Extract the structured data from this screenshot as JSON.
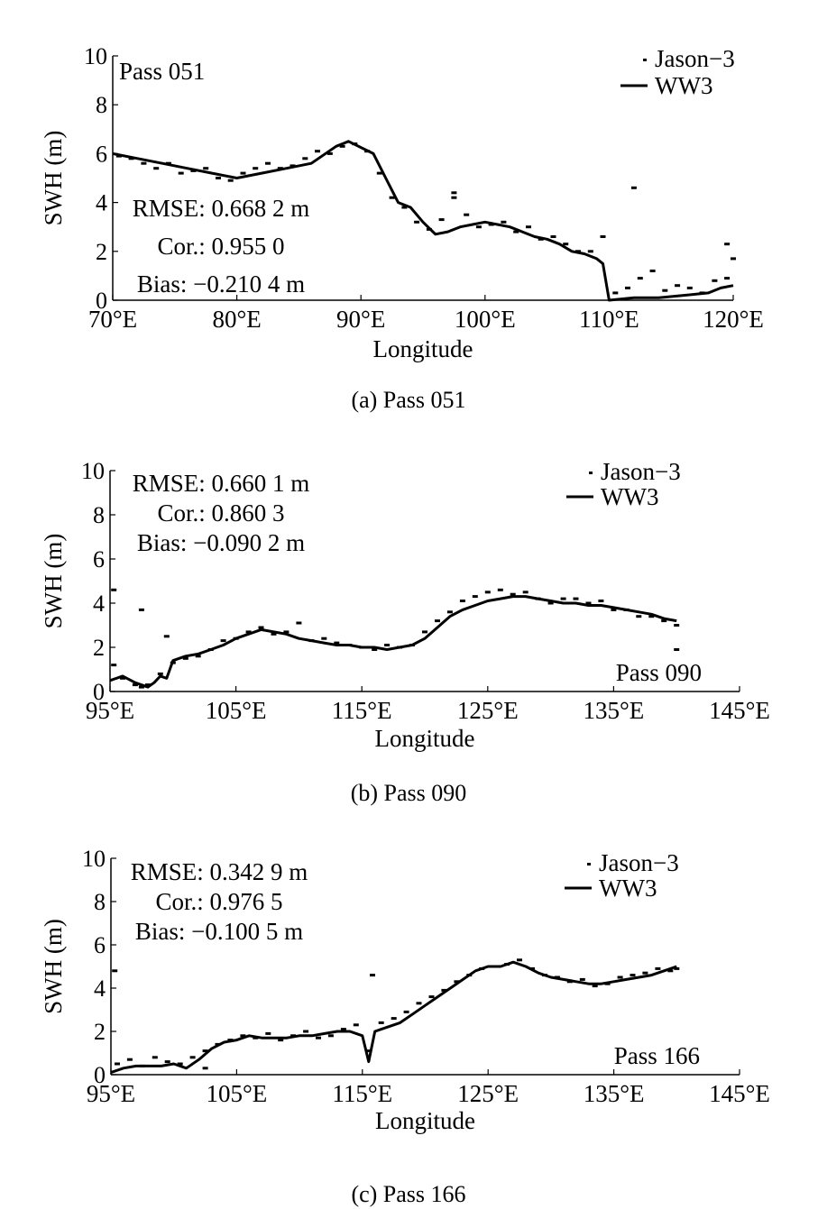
{
  "chart_data": [
    {
      "type": "line",
      "xlabel": "Longitude",
      "ylabel": "SWH (m)",
      "caption": "(a) Pass 051",
      "pass_label": "Pass 051",
      "x_ticks": [
        "70°E",
        "80°E",
        "90°E",
        "100°E",
        "110°E",
        "120°E"
      ],
      "y_ticks": [
        "0",
        "2",
        "4",
        "6",
        "8",
        "10"
      ],
      "xlim": [
        70,
        120
      ],
      "ylim": [
        0,
        10
      ],
      "legend_position": "top-right",
      "stats": [
        "RMSE: 0.668 2 m",
        "Cor.: 0.955 0",
        "Bias: −0.210 4 m"
      ],
      "series": [
        {
          "name": "Jason−3",
          "kind": "points",
          "x": [
            70.5,
            71.5,
            72.5,
            73.5,
            74.5,
            75.5,
            76.5,
            77.5,
            78.5,
            79.5,
            80.5,
            81.5,
            82.5,
            83.5,
            84.5,
            85.5,
            86.5,
            87.5,
            88.5,
            89.5,
            90.5,
            91.5,
            92.5,
            93.5,
            94.5,
            95.5,
            96.5,
            97.5,
            98.5,
            99.5,
            100.5,
            101.5,
            102.5,
            103.5,
            104.5,
            105.5,
            106.5,
            107.5,
            108.5,
            110.5,
            111.5,
            112.5,
            113.5,
            114.5,
            115.5,
            116.5,
            117.5,
            118.5,
            119.5,
            97.5,
            109.5,
            112.0,
            119.5,
            120.0
          ],
          "y": [
            5.9,
            5.8,
            5.6,
            5.4,
            5.6,
            5.2,
            5.3,
            5.4,
            5.0,
            4.9,
            5.2,
            5.4,
            5.6,
            5.4,
            5.5,
            5.8,
            6.1,
            6.0,
            6.3,
            6.4,
            6.1,
            5.2,
            4.2,
            3.8,
            3.2,
            2.9,
            3.3,
            4.2,
            3.5,
            3.0,
            3.1,
            3.2,
            2.8,
            3.0,
            2.5,
            2.6,
            2.3,
            2.0,
            2.0,
            0.3,
            0.5,
            0.9,
            1.2,
            0.4,
            0.6,
            0.5,
            0.3,
            0.8,
            0.9,
            4.4,
            2.6,
            4.6,
            2.3,
            1.7
          ]
        },
        {
          "name": "WW3",
          "kind": "line",
          "x": [
            70,
            72,
            74,
            76,
            78,
            80,
            82,
            84,
            86,
            88,
            89,
            91,
            92,
            93,
            94,
            95,
            96,
            97,
            98,
            99,
            100,
            101,
            102,
            103,
            104,
            105,
            106,
            107,
            108,
            109,
            109.5,
            110,
            112,
            114,
            116,
            118,
            119,
            120
          ],
          "y": [
            6.0,
            5.8,
            5.6,
            5.4,
            5.2,
            5.0,
            5.2,
            5.4,
            5.6,
            6.3,
            6.5,
            6.0,
            5.0,
            4.0,
            3.8,
            3.2,
            2.7,
            2.8,
            3.0,
            3.1,
            3.2,
            3.1,
            3.0,
            2.8,
            2.6,
            2.5,
            2.3,
            2.0,
            1.9,
            1.7,
            1.5,
            0.0,
            0.1,
            0.1,
            0.2,
            0.3,
            0.5,
            0.6
          ]
        }
      ]
    },
    {
      "type": "line",
      "xlabel": "Longitude",
      "ylabel": "SWH (m)",
      "caption": "(b) Pass 090",
      "pass_label": "Pass 090",
      "x_ticks": [
        "95°E",
        "105°E",
        "115°E",
        "125°E",
        "135°E",
        "145°E"
      ],
      "y_ticks": [
        "0",
        "2",
        "4",
        "6",
        "8",
        "10"
      ],
      "xlim": [
        95,
        145
      ],
      "ylim": [
        0,
        10
      ],
      "legend_position": "top-right",
      "stats": [
        "RMSE: 0.660 1 m",
        "Cor.: 0.860 3",
        "Bias: −0.090 2 m"
      ],
      "series": [
        {
          "name": "Jason−3",
          "kind": "points",
          "x": [
            95.3,
            96.0,
            97.0,
            97.5,
            98.0,
            99.0,
            100.0,
            101.0,
            102.0,
            103.0,
            104.0,
            105.0,
            106.0,
            107.0,
            108.0,
            109.0,
            110.0,
            111.0,
            112.0,
            113.0,
            114.0,
            115.0,
            116.0,
            117.0,
            118.0,
            119.0,
            120.0,
            121.0,
            122.0,
            123.0,
            124.0,
            125.0,
            126.0,
            127.0,
            128.0,
            129.0,
            130.0,
            131.0,
            132.0,
            133.0,
            134.0,
            135.0,
            136.0,
            137.0,
            138.0,
            139.0,
            140.0,
            95.3,
            97.5,
            99.5,
            140.0
          ],
          "y": [
            1.2,
            0.6,
            0.3,
            0.2,
            0.3,
            0.8,
            1.3,
            1.5,
            1.6,
            1.9,
            2.3,
            2.4,
            2.7,
            2.9,
            2.6,
            2.7,
            3.1,
            2.3,
            2.4,
            2.2,
            2.1,
            2.0,
            1.9,
            2.1,
            2.0,
            2.1,
            2.7,
            3.2,
            3.6,
            4.1,
            4.3,
            4.5,
            4.6,
            4.4,
            4.5,
            4.2,
            4.0,
            4.2,
            4.2,
            4.0,
            4.1,
            3.7,
            3.7,
            3.4,
            3.4,
            3.2,
            3.0,
            4.6,
            3.7,
            2.5,
            1.9
          ]
        },
        {
          "name": "WW3",
          "kind": "line",
          "x": [
            95,
            96,
            97,
            98,
            98.5,
            99,
            99.5,
            100,
            101,
            102,
            103,
            104,
            105,
            106,
            107,
            108,
            109,
            110,
            111,
            112,
            113,
            114,
            115,
            116,
            117,
            118,
            119,
            120,
            121,
            122,
            123,
            124,
            125,
            126,
            127,
            128,
            129,
            130,
            131,
            132,
            133,
            134,
            135,
            136,
            137,
            138,
            139,
            140
          ],
          "y": [
            0.5,
            0.7,
            0.4,
            0.2,
            0.4,
            0.7,
            0.6,
            1.4,
            1.6,
            1.7,
            1.9,
            2.1,
            2.4,
            2.6,
            2.8,
            2.7,
            2.6,
            2.4,
            2.3,
            2.2,
            2.1,
            2.1,
            2.0,
            2.0,
            1.9,
            2.0,
            2.1,
            2.4,
            2.9,
            3.4,
            3.7,
            3.9,
            4.1,
            4.2,
            4.3,
            4.3,
            4.2,
            4.1,
            4.0,
            4.0,
            3.9,
            3.9,
            3.8,
            3.7,
            3.6,
            3.5,
            3.3,
            3.2
          ]
        }
      ]
    },
    {
      "type": "line",
      "xlabel": "Longitude",
      "ylabel": "SWH (m)",
      "caption": "(c) Pass 166",
      "pass_label": "Pass 166",
      "x_ticks": [
        "95°E",
        "105°E",
        "115°E",
        "125°E",
        "135°E",
        "145°E"
      ],
      "y_ticks": [
        "0",
        "2",
        "4",
        "6",
        "8",
        "10"
      ],
      "xlim": [
        95,
        145
      ],
      "ylim": [
        0,
        10
      ],
      "legend_position": "top-right",
      "stats": [
        "RMSE: 0.342 9 m",
        "Cor.: 0.976 5",
        "Bias: −0.100 5 m"
      ],
      "series": [
        {
          "name": "Jason−3",
          "kind": "points",
          "x": [
            95.5,
            96.5,
            97.5,
            98.5,
            99.5,
            100.5,
            101.5,
            102.5,
            103.5,
            104.5,
            105.5,
            106.5,
            107.5,
            108.5,
            109.5,
            110.5,
            111.5,
            112.5,
            113.5,
            114.5,
            115.5,
            116.5,
            117.5,
            118.5,
            119.5,
            120.5,
            121.5,
            122.5,
            123.5,
            124.5,
            125.5,
            126.5,
            127.5,
            128.5,
            129.5,
            130.5,
            131.5,
            132.5,
            133.5,
            134.5,
            135.5,
            136.5,
            137.5,
            138.5,
            139.5,
            140.0,
            95.3,
            115.8,
            102.5
          ],
          "y": [
            0.5,
            0.7,
            0.4,
            0.8,
            0.6,
            0.5,
            0.8,
            1.1,
            1.4,
            1.6,
            1.8,
            1.7,
            1.9,
            1.6,
            1.8,
            2.0,
            1.7,
            1.8,
            2.1,
            2.3,
            1.1,
            2.4,
            2.6,
            2.9,
            3.3,
            3.6,
            3.9,
            4.3,
            4.6,
            4.9,
            5.0,
            5.1,
            5.3,
            4.9,
            4.6,
            4.5,
            4.3,
            4.4,
            4.1,
            4.2,
            4.5,
            4.6,
            4.7,
            4.9,
            4.8,
            4.9,
            4.8,
            4.6,
            0.3
          ]
        },
        {
          "name": "WW3",
          "kind": "line",
          "x": [
            95,
            96,
            97,
            98,
            99,
            100,
            101,
            102,
            103,
            104,
            105,
            106,
            107,
            108,
            109,
            110,
            111,
            112,
            113,
            114,
            115,
            115.5,
            116,
            117,
            118,
            119,
            120,
            121,
            122,
            123,
            124,
            125,
            126,
            127,
            128,
            129,
            130,
            131,
            132,
            133,
            134,
            135,
            136,
            137,
            138,
            139,
            140
          ],
          "y": [
            0.1,
            0.3,
            0.4,
            0.4,
            0.4,
            0.5,
            0.3,
            0.7,
            1.2,
            1.5,
            1.6,
            1.8,
            1.7,
            1.7,
            1.7,
            1.8,
            1.8,
            1.9,
            2.0,
            2.0,
            1.8,
            0.6,
            2.0,
            2.2,
            2.4,
            2.8,
            3.2,
            3.6,
            4.0,
            4.4,
            4.8,
            5.0,
            5.0,
            5.2,
            5.0,
            4.7,
            4.5,
            4.4,
            4.3,
            4.2,
            4.2,
            4.3,
            4.4,
            4.5,
            4.6,
            4.8,
            5.0
          ]
        }
      ]
    }
  ]
}
